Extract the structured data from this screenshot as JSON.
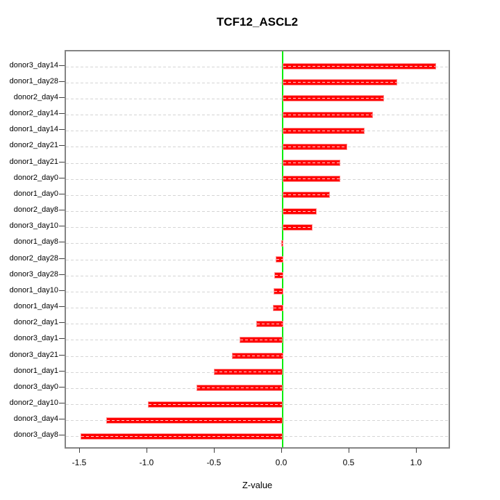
{
  "title": "TCF12_ASCL2",
  "xlabel": "Z-value",
  "colors": {
    "bar_fill": "#ff0000",
    "bar_border": "#ff8a8a",
    "zero_line": "#00ee00",
    "gridline": "#d4d4d4",
    "plot_border": "#838383",
    "text": "#000000"
  },
  "chart_data": {
    "type": "bar",
    "orientation": "horizontal",
    "title": "TCF12_ASCL2",
    "xlabel": "Z-value",
    "ylabel": "",
    "grid": true,
    "zero_reference_line": 0,
    "xlim": [
      -1.61,
      1.25
    ],
    "x_ticks": [
      {
        "label": "-1.5",
        "value": -1.5
      },
      {
        "label": "-1.0",
        "value": -1.0
      },
      {
        "label": "-0.5",
        "value": -0.5
      },
      {
        "label": "0.0",
        "value": 0.0
      },
      {
        "label": "0.5",
        "value": 0.5
      },
      {
        "label": "1.0",
        "value": 1.0
      }
    ],
    "categories": [
      "donor3_day14",
      "donor1_day28",
      "donor2_day4",
      "donor2_day14",
      "donor1_day14",
      "donor2_day21",
      "donor1_day21",
      "donor2_day0",
      "donor1_day0",
      "donor2_day8",
      "donor3_day10",
      "donor1_day8",
      "donor2_day28",
      "donor3_day28",
      "donor1_day10",
      "donor1_day4",
      "donor2_day1",
      "donor3_day1",
      "donor3_day21",
      "donor1_day1",
      "donor3_day0",
      "donor2_day10",
      "donor3_day4",
      "donor3_day8"
    ],
    "values": [
      1.14,
      0.85,
      0.75,
      0.67,
      0.61,
      0.48,
      0.43,
      0.43,
      0.35,
      0.25,
      0.22,
      -0.015,
      -0.055,
      -0.065,
      -0.07,
      -0.075,
      -0.2,
      -0.32,
      -0.38,
      -0.51,
      -0.64,
      -1.0,
      -1.31,
      -1.5
    ]
  }
}
